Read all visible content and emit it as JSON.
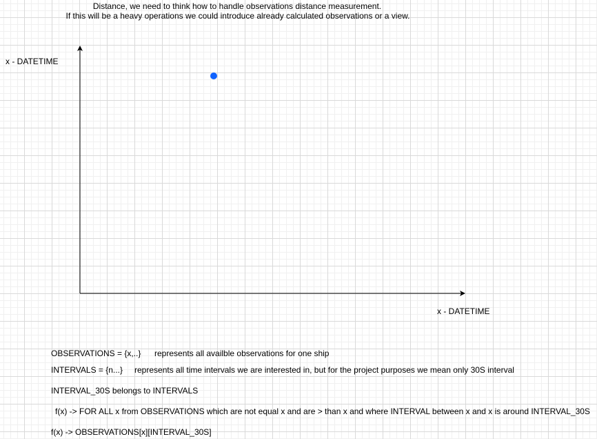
{
  "header": {
    "line1": "Distance, we need to think how to handle observations distance measurement.",
    "line2": "If this will be a heavy operations we could introduce already calculated observations or a view."
  },
  "axes": {
    "y_label": "x - DATETIME",
    "x_label": "x - DATETIME"
  },
  "colors": {
    "point": "#0f62fe",
    "axis": "#000000"
  },
  "notes": {
    "observations_def": "OBSERVATIONS =  {x,..}",
    "observations_desc": "represents all availble observations for one ship",
    "intervals_def": "INTERVALS = {n...}",
    "intervals_desc": "represents all time intervals we are interested in, but for the project purposes we mean only 30S interval",
    "interval_30s": "INTERVAL_30S belongs to INTERVALS",
    "fx_rule": "f(x) -> FOR ALL x from OBSERVATIONS which are not equal x and are > than x and where INTERVAL between x and x is around  INTERVAL_30S",
    "fx_result": "f(x) -> OBSERVATIONS[x][INTERVAL_30S]"
  }
}
